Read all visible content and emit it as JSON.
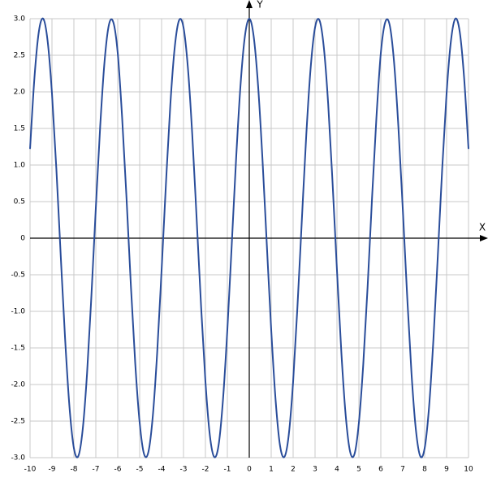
{
  "chart_data": {
    "type": "line",
    "x_label": "X",
    "y_label": "Y",
    "x": [
      -10,
      -9.8,
      -9.6,
      -9.4,
      -9.2,
      -9,
      -8.8,
      -8.6,
      -8.4,
      -8.2,
      -8,
      -7.8,
      -7.6,
      -7.4,
      -7.2,
      -7,
      -6.8,
      -6.6,
      -6.4,
      -6.2,
      -6,
      -5.8,
      -5.6,
      -5.4,
      -5.2,
      -5,
      -4.8,
      -4.6,
      -4.4,
      -4.2,
      -4,
      -3.8,
      -3.6,
      -3.4,
      -3.2,
      -3,
      -2.8,
      -2.6,
      -2.4,
      -2.2,
      -2,
      -1.8,
      -1.6,
      -1.4,
      -1.2,
      -1,
      -0.8,
      -0.6,
      -0.4,
      -0.2,
      0,
      0.2,
      0.4,
      0.6,
      0.8,
      1,
      1.2,
      1.4,
      1.6,
      1.8,
      2,
      2.2,
      2.4,
      2.6,
      2.8,
      3,
      3.2,
      3.4,
      3.6,
      3.8,
      4,
      4.2,
      4.4,
      4.6,
      4.8,
      5,
      5.2,
      5.4,
      5.6,
      5.8,
      6,
      6.2,
      6.4,
      6.6,
      6.8,
      7,
      7.2,
      7.4,
      7.6,
      7.8,
      8,
      8.2,
      8.4,
      8.6,
      8.8,
      9,
      9.2,
      9.4,
      9.6,
      9.8,
      10
    ],
    "series": [
      {
        "color": "#2a4d9a",
        "values": [
          1.22,
          2.19,
          2.82,
          3.0,
          2.7,
          1.98,
          0.95,
          -0.24,
          -1.38,
          -2.31,
          -2.87,
          -2.98,
          -2.62,
          -1.85,
          -0.78,
          0.41,
          1.53,
          2.42,
          2.92,
          2.95,
          2.53,
          1.65,
          0.55,
          -0.65,
          -1.72,
          -2.52,
          -2.95,
          -2.92,
          -2.43,
          -1.56,
          -0.44,
          0.75,
          1.83,
          2.61,
          2.98,
          2.88,
          2.33,
          1.41,
          0.26,
          -0.92,
          -1.96,
          -2.69,
          -2.99,
          -2.83,
          -2.21,
          -1.25,
          -0.09,
          1.09,
          2.09,
          2.76,
          3.0,
          2.76,
          2.09,
          1.09,
          -0.09,
          -1.25,
          -2.21,
          -2.83,
          -2.99,
          -2.69,
          -1.96,
          -0.92,
          0.26,
          1.41,
          2.33,
          2.88,
          2.98,
          2.61,
          1.83,
          0.75,
          -0.44,
          -1.56,
          -2.43,
          -2.92,
          -2.95,
          -2.52,
          -1.72,
          -0.65,
          0.55,
          1.65,
          2.53,
          2.95,
          2.92,
          2.42,
          1.53,
          0.41,
          -0.78,
          -1.85,
          -2.62,
          -2.98,
          -2.87,
          -2.31,
          -1.38,
          -0.24,
          0.95,
          1.98,
          2.7,
          3.0,
          2.82,
          2.19,
          1.22
        ]
      }
    ],
    "xlim": [
      -10,
      10
    ],
    "xticks": [
      -10,
      -9,
      -8,
      -7,
      -6,
      -5,
      -4,
      -3,
      -2,
      -1,
      0,
      1,
      2,
      3,
      4,
      5,
      6,
      7,
      8,
      9,
      10
    ],
    "ylim": [
      -3,
      3
    ],
    "yticks": [
      {
        "value": -3,
        "label": "-3.0"
      },
      -2.5,
      {
        "value": -2,
        "label": "-2.0"
      },
      -1.5,
      {
        "value": -1,
        "label": "-1.0"
      },
      -0.5,
      0,
      0.5,
      {
        "value": 1,
        "label": "1.0"
      },
      1.5,
      {
        "value": 2,
        "label": "2.0"
      },
      2.5,
      {
        "value": 3,
        "label": "3.0"
      }
    ],
    "grid": true
  }
}
